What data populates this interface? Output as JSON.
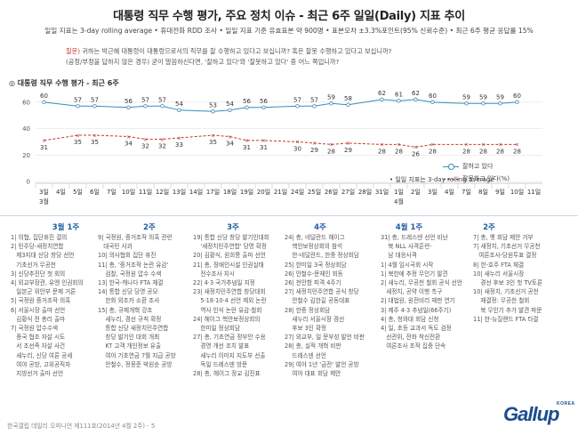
{
  "title": "대통령 직무 수행 평가, 주요 정치 이슈 - 최근 6주 일일(Daily) 지표 추이",
  "subtitle": "일일 지표는 3-day rolling average • 휴대전화 RDD 조사 • 일일 지표 기준 유효표본 약 900명 • 표본오차 ±3.3%포인트(95% 신뢰수준) • 최근 6주 평균 응답률 15%",
  "question": {
    "label": "질문)",
    "line1": " 귀하는 박근혜 대통령이 대통령으로서의 직무를 잘 수행하고 있다고 보십니까? 혹은 잘못 수행하고 있다고 보십니까?",
    "line2": "(공정/부정을 답하지 않은 경우) 굳이 말씀하신다면, '잘하고 있다'와 '잘못하고 있다' 중 어느 쪽입니까?"
  },
  "chart_data": {
    "type": "line",
    "title": "대통령 직무 수행 평가 - 최근 6주",
    "ylim": [
      0,
      70
    ],
    "yticks": [
      0,
      20,
      40,
      60
    ],
    "grid": true,
    "legend_position": "right",
    "x": [
      "3일",
      "4일",
      "5일",
      "6일",
      "7일",
      "10일",
      "11일",
      "12일",
      "13일",
      "14일",
      "17일",
      "18일",
      "19일",
      "20일",
      "21일",
      "24일",
      "25일",
      "26일",
      "27일",
      "28일",
      "31일",
      "1일",
      "2일",
      "3일",
      "4일",
      "7일",
      "8일",
      "9일",
      "10일",
      "11일"
    ],
    "x_month_labels": [
      {
        "index": 0,
        "text": "3월"
      },
      {
        "index": 21,
        "text": "4월"
      }
    ],
    "series": [
      {
        "name": "잘하고 있다",
        "color": "#3a8cb8",
        "dash": false,
        "values": [
          60,
          null,
          57,
          57,
          null,
          56,
          57,
          57,
          54,
          null,
          53,
          54,
          56,
          56,
          null,
          57,
          57,
          59,
          58,
          null,
          62,
          61,
          62,
          60,
          null,
          59,
          59,
          59,
          60,
          null
        ],
        "labels": [
          60,
          null,
          57,
          57,
          null,
          56,
          57,
          57,
          54,
          null,
          53,
          54,
          56,
          56,
          null,
          57,
          57,
          59,
          58,
          null,
          62,
          61,
          62,
          60,
          null,
          59,
          59,
          59,
          60,
          null
        ]
      },
      {
        "name": "잘못하고 있다(%)",
        "color": "#c0392b",
        "dash": true,
        "values": [
          31,
          null,
          35,
          35,
          null,
          34,
          32,
          32,
          33,
          null,
          35,
          34,
          31,
          31,
          null,
          30,
          29,
          28,
          29,
          null,
          28,
          28,
          26,
          28,
          null,
          28,
          28,
          28,
          28,
          null
        ],
        "labels": [
          31,
          null,
          35,
          35,
          null,
          34,
          32,
          32,
          33,
          null,
          35,
          34,
          31,
          31,
          null,
          30,
          29,
          28,
          29,
          null,
          28,
          28,
          26,
          28,
          null,
          28,
          28,
          28,
          28,
          null
        ]
      }
    ],
    "rolling_note": "• 일일 지표는 3-day rolling average"
  },
  "weeks": [
    {
      "label": "3월 1주",
      "events": "1| 의협, 집단휴진 결의\n2| 민주당-새정치연합\n   제3지대 신당 창당 선언\n   기초선거 무공천\n3| 신당추진단 첫 회의\n4| 외교부장관, 유엔 인권회의\n   일본군 위안부 문제 거론\n5| 국정원 증거조작 의혹\n6| 서울시장 출마 선언\n   김황식 전 총리 출마\n7| 국정원 압수수색\n   중국 협조 자살 시도\n   서 조선족 자살 사건\n   새누리, 신당 여론 공세\n   여야 공방, 고위공직자\n   지방선거 출마 선언"
    },
    {
      "label": "2주",
      "events": "9| 국정원, 증거조작 의혹 관련\n   대국민 사과\n10| 의사협회 집단 휴진\n11| 총, '증거조작 논란 유감'\n    검찰, 국정원 압수 수색\n13| 한국-캐나다 FTA 체결\n14| 통합 신당 당명 공모\n    한화 외조카 소환 조사\n15| 총, 규제개혁 강조\n    새누리, 경선 규칙 확정\n    통합 신당 새정치민주연합\n    창당 발기인 대회 개최\n    KT 고객 개인정보 유출\n    여야 기초연금 7월 지급 공방\n    안철수, 정몽준 박원순 공방"
    },
    {
      "label": "3주",
      "events": "19| 통합 신당 창당 발기인대회\n    '새정치민주연합' 당명 확정\n20| 김황식, 원희룡 출마 선언\n21| 총, 장애인시설 인권실태\n    전수조사 지시\n22| 4·3 국가추념일 지정\n23| 새정치민주연합 창당대회\n    5·18·10·4 선언 제외 논란\n    역사 인식 논란 유감·철회\n24| 헤이그 핵안보정상회의\n    한미일 정상회담\n27| 총, 기초연금 정부안 수용\n    경영 개선 조치 발표\n    새누리 이미지 지도부 선출\n    독일 드레스덴 방문\n28| 총, 헤이그 장교 김진표"
    },
    {
      "label": "4주",
      "events": "24| 총, 네덜란드 헤이그\n    핵안보정상회의 참석\n    한-네덜란드, 한중 정상회담\n25| 한미일 3국 정상회담\n26| 안철수-문재인 회동\n26| 천안함 피격 4주기\n27| 새정치민주연합 공식 창당\n    안철수 김한길 공동대표\n28| 한중 정상회담\n    새누리 서울시장 경선\n    후보 3인 확정\n27| 외교부, 일 문부성 발언 비판\n28| 총, 실적 개혁 비판\n    드레스덴 선언\n29| 여야 1년 '금전' 발언 공방\n    여야 대표 회담 제안"
    },
    {
      "label": "4월 1주",
      "events": "31| 총, 드레스덴 선언 비난\n    북 NLL 사격훈련-\n    남 대응사격\n1| 4월 임시국회 시작\n1| 북한에 추정 무인기 발견\n2| 새누리, 무공천 철회 공식 선언\n   새정치, 공약 이행 촉구\n2| 대법원, 원전비리 재판 연기\n3| 제주 4·3 추념일(66주기)\n4| 총, 청와대 회담 신청\n4| 일, 초등 교과서 독도 검정\n   선관위, 전화 착신전환\n   여론조사 조작 집중 단속"
    },
    {
      "label": "2주",
      "events": "7| 총, 옛 회담 제안 거부\n7| 새정치, 기초선거 무공천\n   여론조사-당원투표 결정\n8| 한-호주 FTA 체결\n10| 새누리 서울시장\n    경선 후보 3인 첫 TV토론\n10| 새정치, 기초선거 공천\n    재결정: 무공천 철회\n    북 무인기 추가 발견 파문\n11| 한-뉴질랜드 FTA 타결"
    }
  ],
  "footer": "한국갤럽 데일리 오피니언 제111호(2014년 4월 2주) - 5",
  "logo": "Gallup",
  "logo_small": "KOREA"
}
